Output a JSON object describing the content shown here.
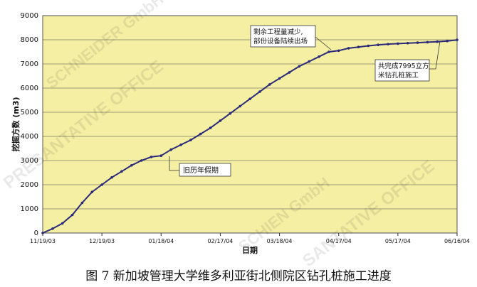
{
  "chart_data": {
    "type": "line",
    "ylabel": "挖掘方数 (m3)",
    "xlabel": "日期",
    "ylim": [
      0,
      9000
    ],
    "yticks": [
      0,
      1000,
      2000,
      3000,
      4000,
      5000,
      6000,
      7000,
      8000,
      9000
    ],
    "xticks": [
      "11/19/03",
      "12/19/03",
      "01/18/04",
      "02/17/04",
      "03/18/04",
      "04/17/04",
      "05/17/04",
      "06/16/04"
    ],
    "grid": true,
    "background": "#F5EFA3",
    "series_color": "#2B2A7A",
    "series": [
      {
        "x": [
          "11/19/03",
          "11/24/03",
          "11/29/03",
          "12/04/03",
          "12/09/03",
          "12/14/03",
          "12/19/03",
          "12/24/03",
          "12/29/03",
          "01/03/04",
          "01/08/04",
          "01/13/04",
          "01/18/04",
          "01/23/04",
          "01/28/04",
          "02/02/04",
          "02/07/04",
          "02/12/04",
          "02/17/04",
          "02/22/04",
          "02/27/04",
          "03/03/04",
          "03/08/04",
          "03/13/04",
          "03/18/04",
          "03/23/04",
          "03/28/04",
          "04/02/04",
          "04/07/04",
          "04/12/04",
          "04/17/04",
          "04/22/04",
          "04/27/04",
          "05/02/04",
          "05/07/04",
          "05/12/04",
          "05/17/04",
          "05/22/04",
          "05/27/04",
          "06/01/04",
          "06/06/04",
          "06/11/04",
          "06/16/04"
        ],
        "values": [
          0,
          180,
          400,
          750,
          1250,
          1700,
          2000,
          2300,
          2550,
          2800,
          3000,
          3150,
          3200,
          3450,
          3650,
          3850,
          4100,
          4350,
          4650,
          4950,
          5250,
          5550,
          5850,
          6150,
          6400,
          6650,
          6900,
          7100,
          7300,
          7500,
          7550,
          7650,
          7700,
          7750,
          7790,
          7820,
          7840,
          7860,
          7880,
          7900,
          7920,
          7950,
          7995
        ]
      }
    ],
    "annotations": [
      {
        "text": "旧历年假期",
        "x": "01/18/04",
        "y": 3200
      },
      {
        "text": "剩余工程量减少，部份设备陆续出场",
        "x": "04/17/04",
        "y": 7550
      },
      {
        "text": "共完成7995立方米钻孔桩施工",
        "x": "06/16/04",
        "y": 7995
      }
    ]
  },
  "annotation_lines": {
    "a1": "旧历年假期",
    "a2_line1": "剩余工程量减少,",
    "a2_line2": "部份设备陆续出场",
    "a3_line1": "共完成7995立方",
    "a3_line2": "米钻孔桩施工"
  },
  "caption": "图 7    新加坡管理大学维多利亚街北侧院区钻孔桩施工进度",
  "watermarks": [
    "SCHNEIDER GmbH",
    "PRESANTATIVE OFFICE",
    "SCHIEN GmbH",
    "SANTATIVE OFFICE"
  ]
}
